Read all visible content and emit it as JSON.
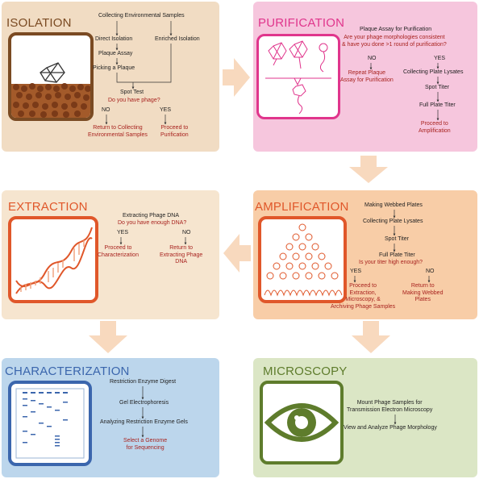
{
  "colors": {
    "isolation_bg": "#f1dcc3",
    "isolation_accent": "#7a4a22",
    "purification_bg": "#f6c6dd",
    "purification_accent": "#e0358c",
    "extraction_bg": "#f6e5cf",
    "extraction_accent": "#e0572a",
    "amplification_bg": "#f8cda7",
    "amplification_accent": "#e0572a",
    "characterization_bg": "#bcd6ec",
    "characterization_accent": "#3b66ad",
    "microscopy_bg": "#dbe6c5",
    "microscopy_accent": "#5e7c2c",
    "red_text": "#a8231f",
    "arrow": "#f8d9be"
  },
  "isolation": {
    "title": "ISOLATION",
    "collect": "Collecting Environmental Samples",
    "direct": "Direct Isolation",
    "enriched": "Enriched Isolation",
    "plaque_assay": "Plaque Assay",
    "picking": "Picking a Plaque",
    "spot_test": "Spot Test",
    "question": "Do you have phage?",
    "no": "NO",
    "yes": "YES",
    "no_result_1": "Return to Collecting",
    "no_result_2": "Environmental Samples",
    "yes_result_1": "Proceed to",
    "yes_result_2": "Purification"
  },
  "purification": {
    "title": "PURIFICATION",
    "step": "Plaque Assay for Purification",
    "question_1": "Are your phage morphologies consistent",
    "question_2": "& have you done >1 round of purification?",
    "no": "NO",
    "yes": "YES",
    "no_result_1": "Repeat Plaque",
    "no_result_2": "Assay for Purification",
    "yes_1": "Collecting Plate Lysates",
    "yes_2": "Spot Titer",
    "yes_3": "Full Plate Titer",
    "yes_result_1": "Proceed to",
    "yes_result_2": "Amplification"
  },
  "extraction": {
    "title": "EXTRACTION",
    "step": "Extracting Phage DNA",
    "question": "Do you have enough DNA?",
    "yes": "YES",
    "no": "NO",
    "yes_result_1": "Proceed to",
    "yes_result_2": "Characterization",
    "no_result_1": "Return to",
    "no_result_2": "Extracting Phage",
    "no_result_3": "DNA"
  },
  "amplification": {
    "title": "AMPLIFICATION",
    "step_1": "Making Webbed Plates",
    "step_2": "Collecting Plate Lysates",
    "step_3": "Spot Titer",
    "step_4": "Full Plate Titer",
    "question": "Is your titer high enough?",
    "yes": "YES",
    "no": "NO",
    "yes_result_1": "Proceed to",
    "yes_result_2": "Extraction,",
    "yes_result_3": "Microscopy, &",
    "yes_result_4": "Archiving Phage Samples",
    "no_result_1": "Return to",
    "no_result_2": "Making Webbed",
    "no_result_3": "Plates"
  },
  "characterization": {
    "title": "CHARACTERIZATION",
    "step_1": "Restriction Enzyme Digest",
    "step_2": "Gel Electrophoresis",
    "step_3": "Analyzing Restriction Enzyme Gels",
    "result_1": "Select a Genome",
    "result_2": "for Sequencing"
  },
  "microscopy": {
    "title": "MICROSCOPY",
    "step_1a": "Mount Phage Samples for",
    "step_1b": "Transmission Electron Microscopy",
    "step_2": "View and Analyze Phage Morphology"
  }
}
